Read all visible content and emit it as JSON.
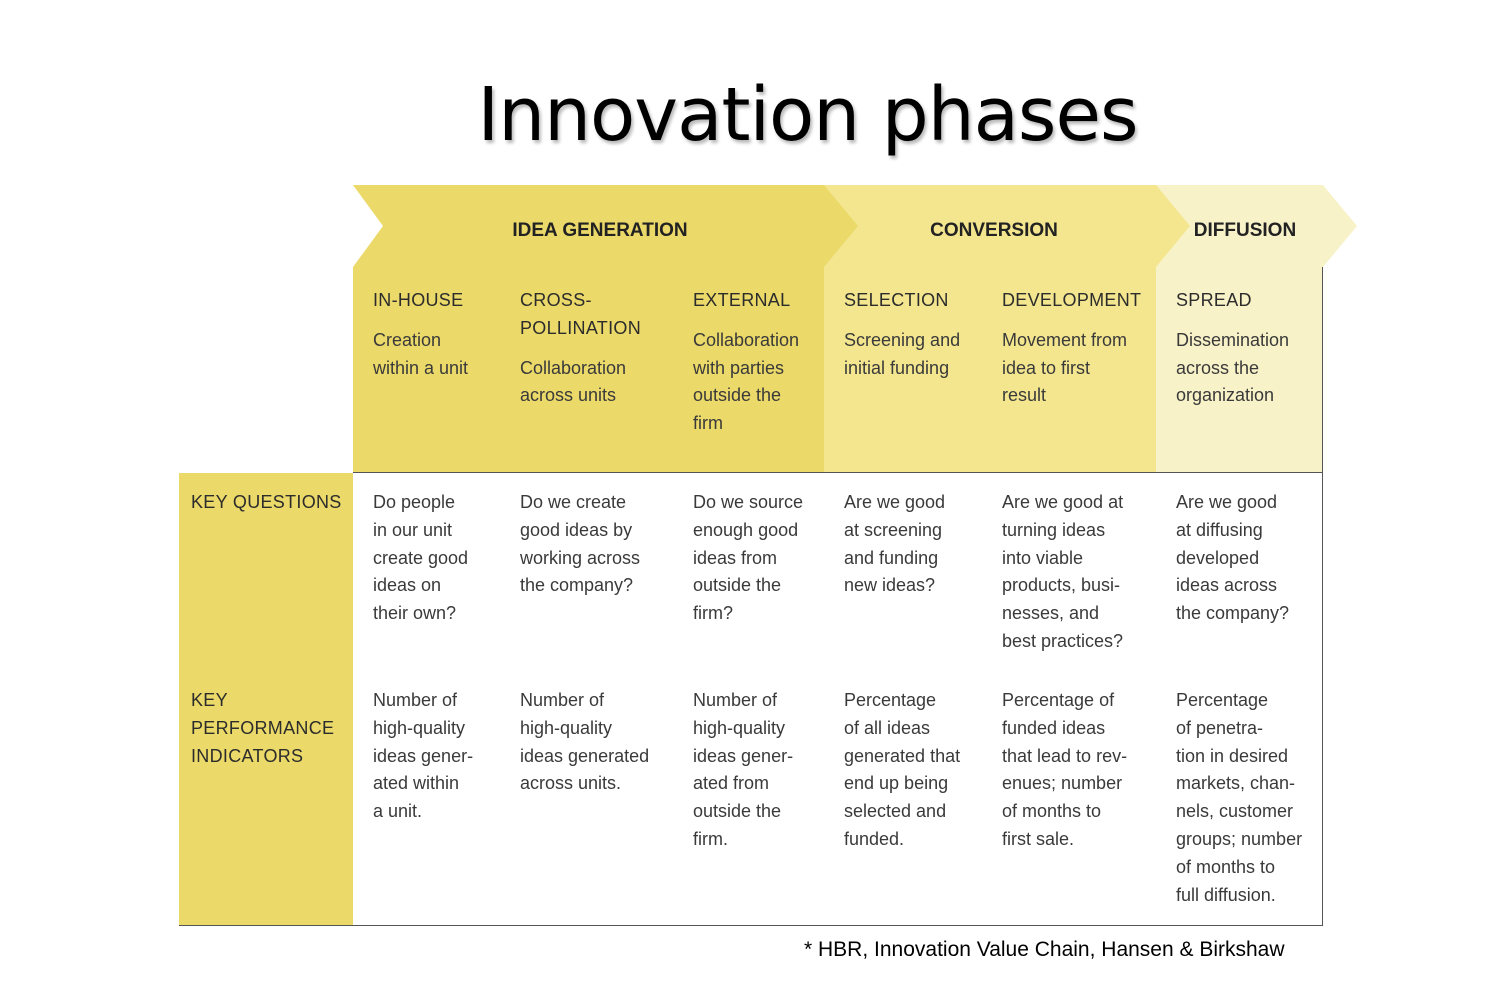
{
  "title": "Innovation phases",
  "phases": [
    {
      "label": "IDEA GENERATION",
      "color": "#ebd969"
    },
    {
      "label": "CONVERSION",
      "color": "#f3e68f"
    },
    {
      "label": "DIFFUSION",
      "color": "#f8f2c8"
    }
  ],
  "stages": [
    {
      "name": "IN-HOUSE",
      "desc": "Creation\nwithin a unit"
    },
    {
      "name": "CROSS-\nPOLLINATION",
      "desc": "Collaboration\nacross units"
    },
    {
      "name": "EXTERNAL",
      "desc": "Collaboration\nwith parties\noutside the\nfirm"
    },
    {
      "name": "SELECTION",
      "desc": "Screening and\ninitial funding"
    },
    {
      "name": "DEVELOPMENT",
      "desc": "Movement from\nidea to first\nresult"
    },
    {
      "name": "SPREAD",
      "desc": "Dissemination\nacross the\norganization"
    }
  ],
  "rows": [
    {
      "label": "KEY QUESTIONS",
      "cells": [
        "Do people\nin our unit\ncreate good\nideas on\ntheir own?",
        "Do we create\ngood ideas by\nworking across\nthe company?",
        "Do we source\nenough good\nideas from\noutside the\nfirm?",
        "Are we good\nat screening\nand funding\nnew ideas?",
        "Are we good at\nturning ideas\ninto viable\nproducts, busi-\nnesses, and\nbest practices?",
        "Are we good\nat diffusing\ndeveloped\nideas across\nthe company?"
      ]
    },
    {
      "label": "KEY\nPERFORMANCE\nINDICATORS",
      "cells": [
        "Number of\nhigh-quality\nideas gener-\nated within\na unit.",
        "Number of\nhigh-quality\nideas generated\nacross units.",
        "Number of\nhigh-quality\nideas gener-\nated from\noutside the\nfirm.",
        "Percentage\nof all ideas\ngenerated that\nend up being\nselected and\nfunded.",
        "Percentage of\nfunded ideas\nthat lead to rev-\nenues; number\nof months to\nfirst sale.",
        "Percentage\nof penetra-\ntion in desired\nmarkets, chan-\nnels, customer\ngroups; number\nof months to\nfull diffusion."
      ]
    }
  ],
  "citation": "* HBR, Innovation Value Chain, Hansen & Birkshaw"
}
